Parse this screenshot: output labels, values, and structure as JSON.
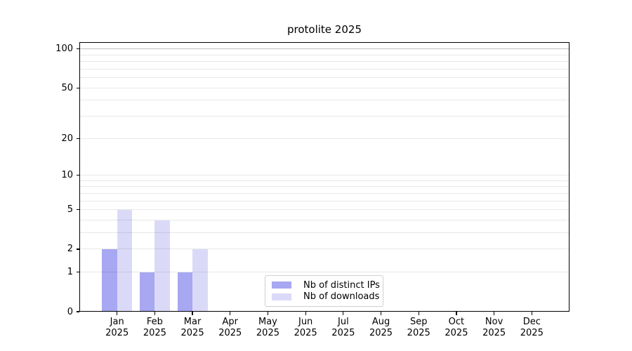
{
  "title": "protolite 2025",
  "colors": {
    "background": "#ffffff",
    "axis": "#000000",
    "grid": "rgba(0,0,0,0.09)",
    "grid_emphasis": "rgba(0,0,0,0.24)",
    "bar_distinct_ips": "#a7a7f2",
    "bar_downloads": "#dadaf8"
  },
  "chart_data": {
    "type": "bar",
    "title": "protolite 2025",
    "xlabel": "",
    "ylabel": "",
    "scale": "log1p",
    "grid": true,
    "legend_position": "lower center",
    "year": "2025",
    "categories": [
      "Jan",
      "Feb",
      "Mar",
      "Apr",
      "May",
      "Jun",
      "Jul",
      "Aug",
      "Sep",
      "Oct",
      "Nov",
      "Dec"
    ],
    "series": [
      {
        "name": "Nb of distinct IPs",
        "color": "#a7a7f2",
        "values": [
          2,
          1,
          1,
          0,
          0,
          0,
          0,
          0,
          0,
          0,
          0,
          0
        ]
      },
      {
        "name": "Nb of downloads",
        "color": "#dadaf8",
        "values": [
          5,
          4,
          2,
          0,
          0,
          0,
          0,
          0,
          0,
          0,
          0,
          0
        ]
      }
    ],
    "yticks": [
      0,
      1,
      2,
      5,
      10,
      20,
      50,
      100
    ],
    "minor_gridlines": [
      3,
      4,
      6,
      7,
      8,
      9,
      30,
      40,
      60,
      70,
      80,
      90
    ],
    "ylim": [
      0,
      113
    ]
  }
}
